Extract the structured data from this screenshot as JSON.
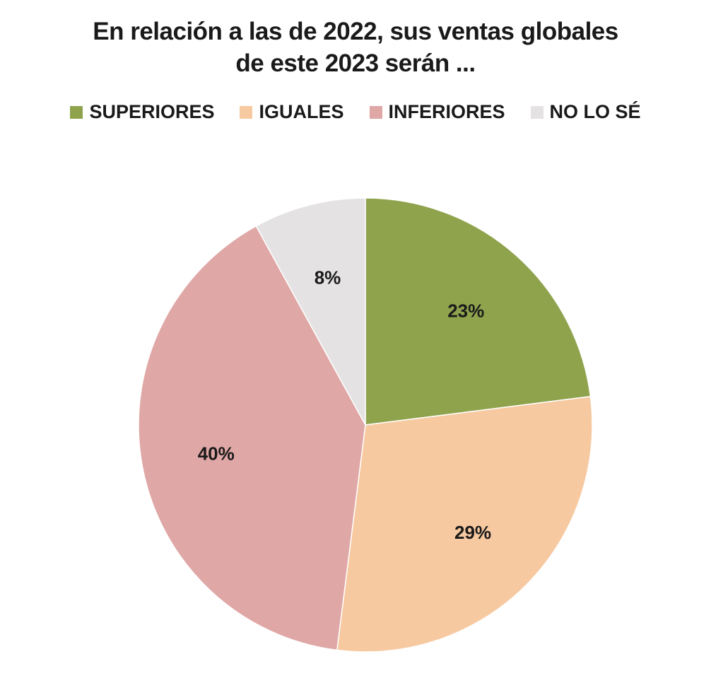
{
  "chart_data": {
    "type": "pie",
    "title": "En relación a las de 2022, sus ventas globales de este 2023 serán ...",
    "title_lines": [
      "En relación a las de 2022, sus ventas globales",
      "de este 2023 serán ..."
    ],
    "legend": [
      "SUPERIORES",
      "IGUALES",
      "INFERIORES",
      "NO LO SÉ"
    ],
    "slices": [
      {
        "label": "SUPERIORES",
        "value": 23,
        "display": "23%",
        "color": "#8fa34d"
      },
      {
        "label": "IGUALES",
        "value": 29,
        "display": "29%",
        "color": "#f7c9a0"
      },
      {
        "label": "INFERIORES",
        "value": 40,
        "display": "40%",
        "color": "#dfa7a5"
      },
      {
        "label": "NO LO SÉ",
        "value": 8,
        "display": "8%",
        "color": "#e4e2e2"
      }
    ]
  }
}
